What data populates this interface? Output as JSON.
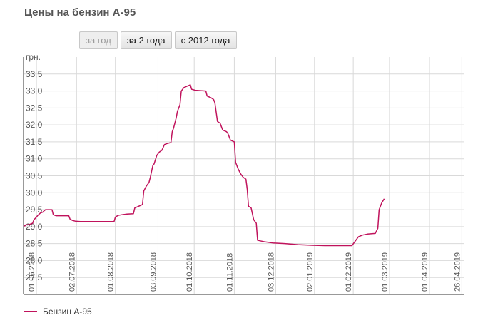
{
  "header": {
    "title": "Цены на бензин А-95"
  },
  "period_buttons": [
    {
      "label": "за год",
      "active": false
    },
    {
      "label": "за 2 года",
      "active": true
    },
    {
      "label": "с 2012 года",
      "active": true
    }
  ],
  "colors": {
    "series": "#c0135c",
    "grid": "#d9d9d9",
    "axis": "#333333"
  },
  "chart_data": {
    "type": "line",
    "title": "",
    "ylabel": "грн.",
    "xlabel": "",
    "ylim": [
      27.0,
      34.0
    ],
    "yticks": [
      "27,5",
      "28,0",
      "28,5",
      "29,0",
      "29,5",
      "30,0",
      "30,5",
      "31,0",
      "31,5",
      "32,0",
      "32,5",
      "33,0",
      "33,5"
    ],
    "ytick_values": [
      27.5,
      28.0,
      28.5,
      29.0,
      29.5,
      30.0,
      30.5,
      31.0,
      31.5,
      32.0,
      32.5,
      33.0,
      33.5
    ],
    "xrange": [
      "2018-05-22",
      "2019-04-28"
    ],
    "xticks": [
      {
        "date": "2018-06-01",
        "label": "01.06.2018"
      },
      {
        "date": "2018-07-02",
        "label": "02.07.2018"
      },
      {
        "date": "2018-08-01",
        "label": "01.08.2018"
      },
      {
        "date": "2018-09-03",
        "label": "03.09.2018"
      },
      {
        "date": "2018-10-01",
        "label": "01.10.2018"
      },
      {
        "date": "2018-11-01",
        "label": "01.11.2018"
      },
      {
        "date": "2018-12-03",
        "label": "03.12.2018"
      },
      {
        "date": "2019-01-02",
        "label": "02.01.2019"
      },
      {
        "date": "2019-02-01",
        "label": "01.02.2019"
      },
      {
        "date": "2019-03-01",
        "label": "01.03.2019"
      },
      {
        "date": "2019-04-01",
        "label": "01.04.2019"
      },
      {
        "date": "2019-04-26",
        "label": "26.04.2019"
      }
    ],
    "grid": true,
    "legend": "bottom-left",
    "series": [
      {
        "name": "Бензин А-95",
        "points": [
          [
            "2018-05-22",
            29.04
          ],
          [
            "2018-05-23",
            29.02
          ],
          [
            "2018-05-24",
            29.06
          ],
          [
            "2018-05-25",
            29.05
          ],
          [
            "2018-05-27",
            29.07
          ],
          [
            "2018-05-29",
            29.1
          ],
          [
            "2018-05-30",
            29.2
          ],
          [
            "2018-06-01",
            29.28
          ],
          [
            "2018-06-02",
            29.33
          ],
          [
            "2018-06-04",
            29.4
          ],
          [
            "2018-06-06",
            29.43
          ],
          [
            "2018-06-07",
            29.47
          ],
          [
            "2018-06-08",
            29.5
          ],
          [
            "2018-06-13",
            29.5
          ],
          [
            "2018-06-14",
            29.35
          ],
          [
            "2018-06-16",
            29.32
          ],
          [
            "2018-06-18",
            29.32
          ],
          [
            "2018-06-26",
            29.32
          ],
          [
            "2018-06-27",
            29.22
          ],
          [
            "2018-06-29",
            29.18
          ],
          [
            "2018-07-01",
            29.16
          ],
          [
            "2018-07-05",
            29.15
          ],
          [
            "2018-07-10",
            29.15
          ],
          [
            "2018-07-20",
            29.15
          ],
          [
            "2018-07-25",
            29.15
          ],
          [
            "2018-07-31",
            29.15
          ],
          [
            "2018-08-01",
            29.28
          ],
          [
            "2018-08-03",
            29.33
          ],
          [
            "2018-08-06",
            29.35
          ],
          [
            "2018-08-10",
            29.37
          ],
          [
            "2018-08-15",
            29.38
          ],
          [
            "2018-08-16",
            29.55
          ],
          [
            "2018-08-19",
            29.6
          ],
          [
            "2018-08-22",
            29.65
          ],
          [
            "2018-08-23",
            30.05
          ],
          [
            "2018-08-25",
            30.2
          ],
          [
            "2018-08-27",
            30.3
          ],
          [
            "2018-08-28",
            30.45
          ],
          [
            "2018-08-30",
            30.8
          ],
          [
            "2018-08-31",
            30.85
          ],
          [
            "2018-09-02",
            31.1
          ],
          [
            "2018-09-04",
            31.2
          ],
          [
            "2018-09-06",
            31.25
          ],
          [
            "2018-09-08",
            31.42
          ],
          [
            "2018-09-10",
            31.45
          ],
          [
            "2018-09-13",
            31.48
          ],
          [
            "2018-09-14",
            31.8
          ],
          [
            "2018-09-15",
            31.9
          ],
          [
            "2018-09-17",
            32.2
          ],
          [
            "2018-09-18",
            32.4
          ],
          [
            "2018-09-20",
            32.6
          ],
          [
            "2018-09-21",
            33.0
          ],
          [
            "2018-09-23",
            33.1
          ],
          [
            "2018-09-26",
            33.15
          ],
          [
            "2018-09-28",
            33.18
          ],
          [
            "2018-09-29",
            33.05
          ],
          [
            "2018-10-02",
            33.02
          ],
          [
            "2018-10-10",
            33.0
          ],
          [
            "2018-10-11",
            32.85
          ],
          [
            "2018-10-14",
            32.8
          ],
          [
            "2018-10-16",
            32.75
          ],
          [
            "2018-10-17",
            32.65
          ],
          [
            "2018-10-19",
            32.1
          ],
          [
            "2018-10-21",
            32.05
          ],
          [
            "2018-10-23",
            31.85
          ],
          [
            "2018-10-26",
            31.8
          ],
          [
            "2018-10-27",
            31.75
          ],
          [
            "2018-10-29",
            31.55
          ],
          [
            "2018-11-01",
            31.5
          ],
          [
            "2018-11-02",
            30.9
          ],
          [
            "2018-11-04",
            30.7
          ],
          [
            "2018-11-06",
            30.55
          ],
          [
            "2018-11-08",
            30.45
          ],
          [
            "2018-11-10",
            30.4
          ],
          [
            "2018-11-11",
            30.1
          ],
          [
            "2018-11-12",
            29.6
          ],
          [
            "2018-11-14",
            29.55
          ],
          [
            "2018-11-16",
            29.2
          ],
          [
            "2018-11-18",
            29.1
          ],
          [
            "2018-11-19",
            28.6
          ],
          [
            "2018-11-21",
            28.58
          ],
          [
            "2018-11-25",
            28.55
          ],
          [
            "2018-12-01",
            28.52
          ],
          [
            "2018-12-10",
            28.5
          ],
          [
            "2018-12-20",
            28.47
          ],
          [
            "2018-12-31",
            28.45
          ],
          [
            "2019-01-10",
            28.44
          ],
          [
            "2019-01-20",
            28.44
          ],
          [
            "2019-01-31",
            28.44
          ],
          [
            "2019-02-03",
            28.6
          ],
          [
            "2019-02-05",
            28.7
          ],
          [
            "2019-02-08",
            28.75
          ],
          [
            "2019-02-12",
            28.78
          ],
          [
            "2019-02-18",
            28.8
          ],
          [
            "2019-02-20",
            28.95
          ],
          [
            "2019-02-21",
            29.5
          ],
          [
            "2019-02-23",
            29.7
          ],
          [
            "2019-02-25",
            29.82
          ]
        ]
      }
    ]
  }
}
